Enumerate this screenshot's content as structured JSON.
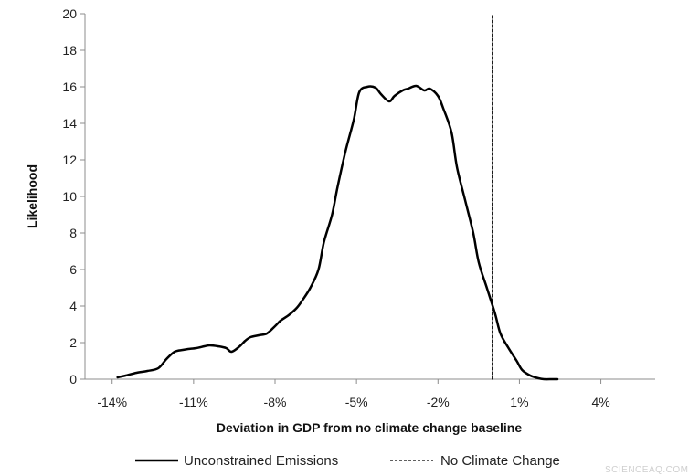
{
  "chart_data": {
    "type": "line",
    "title": "",
    "xlabel": "Deviation in GDP from no climate change baseline",
    "ylabel": "Likelihood",
    "xlim": [
      -15,
      6
    ],
    "ylim": [
      0,
      20
    ],
    "xticks": [
      -14,
      -11,
      -8,
      -5,
      -2,
      1,
      4
    ],
    "xtick_labels": [
      "-14%",
      "-11%",
      "-8%",
      "-5%",
      "-2%",
      "1%",
      "4%"
    ],
    "yticks": [
      0,
      2,
      4,
      6,
      8,
      10,
      12,
      14,
      16,
      18,
      20
    ],
    "ytick_labels": [
      "0",
      "2",
      "4",
      "6",
      "8",
      "10",
      "12",
      "14",
      "16",
      "18",
      "20"
    ],
    "grid": false,
    "legend_position": "bottom",
    "series": [
      {
        "name": "Unconstrained Emissions",
        "style": "solid",
        "color": "#000000",
        "x": [
          -13.8,
          -13.5,
          -13.1,
          -12.7,
          -12.3,
          -12.0,
          -11.7,
          -11.4,
          -11.2,
          -10.9,
          -10.6,
          -10.4,
          -10.1,
          -9.8,
          -9.6,
          -9.3,
          -9.1,
          -8.9,
          -8.6,
          -8.3,
          -8.0,
          -7.8,
          -7.5,
          -7.2,
          -7.0,
          -6.7,
          -6.4,
          -6.2,
          -5.9,
          -5.7,
          -5.4,
          -5.1,
          -4.9,
          -4.6,
          -4.3,
          -4.1,
          -3.8,
          -3.6,
          -3.3,
          -3.1,
          -2.8,
          -2.5,
          -2.3,
          -2.0,
          -1.8,
          -1.5,
          -1.3,
          -1.0,
          -0.7,
          -0.5,
          -0.2,
          0.1,
          0.3,
          0.6,
          0.9,
          1.1,
          1.4,
          1.7,
          1.9,
          2.2,
          2.4
        ],
        "values": [
          0.1,
          0.2,
          0.35,
          0.45,
          0.6,
          1.1,
          1.5,
          1.6,
          1.65,
          1.7,
          1.8,
          1.85,
          1.8,
          1.7,
          1.5,
          1.8,
          2.1,
          2.3,
          2.4,
          2.5,
          2.9,
          3.2,
          3.5,
          3.9,
          4.3,
          5.0,
          6.0,
          7.5,
          9.0,
          10.5,
          12.5,
          14.2,
          15.7,
          16.0,
          15.95,
          15.6,
          15.2,
          15.5,
          15.8,
          15.9,
          16.05,
          15.8,
          15.9,
          15.5,
          14.8,
          13.5,
          11.6,
          9.8,
          8.0,
          6.4,
          5.0,
          3.6,
          2.5,
          1.7,
          1.0,
          0.5,
          0.2,
          0.05,
          0.0,
          0.0,
          0.0
        ]
      },
      {
        "name": "No Climate Change",
        "style": "dashed",
        "color": "#000000",
        "x": [
          0,
          0
        ],
        "values": [
          0,
          20
        ]
      }
    ]
  },
  "watermark": "SCIENCEAQ.COM"
}
